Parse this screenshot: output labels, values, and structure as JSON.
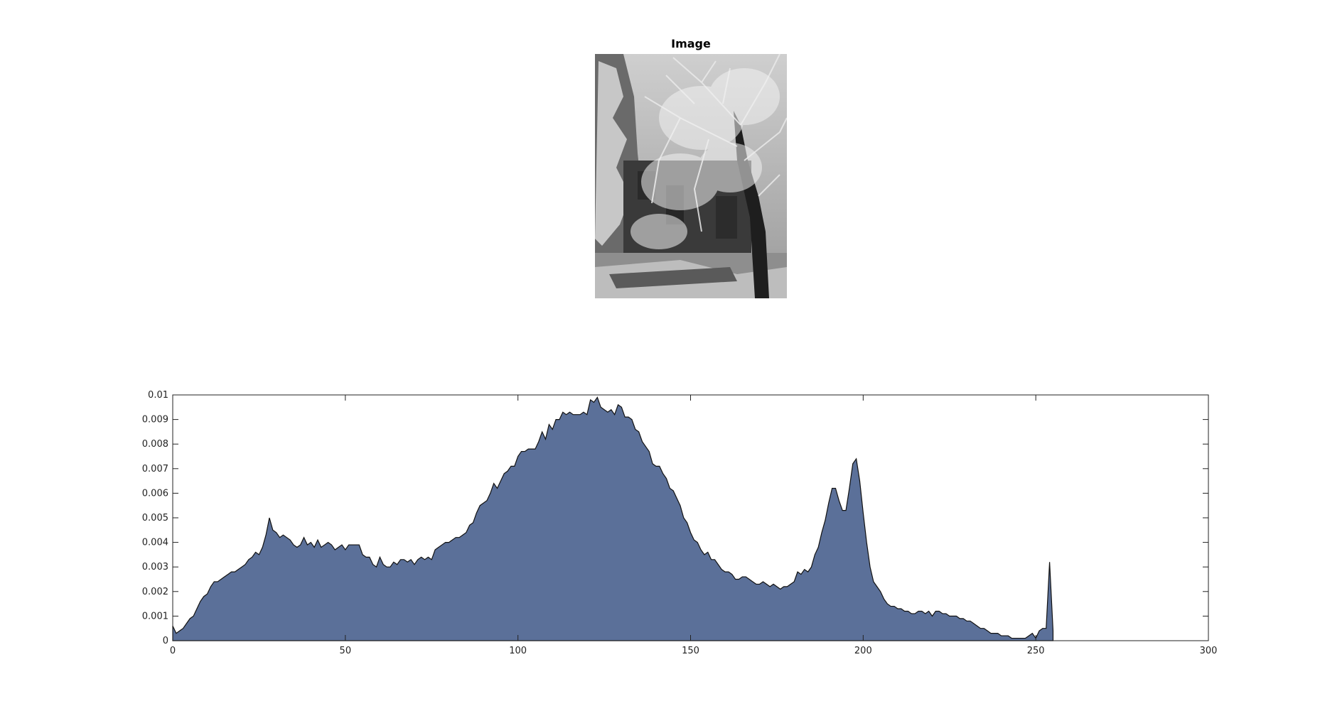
{
  "figure": {
    "image_title": "Image",
    "image_description": "Grayscale photo of snow-covered trees in front of a brick house"
  },
  "chart_data": {
    "type": "area",
    "title": "",
    "xlabel": "",
    "ylabel": "",
    "xlim": [
      0,
      300
    ],
    "ylim": [
      0,
      0.01
    ],
    "xticks": [
      0,
      50,
      100,
      150,
      200,
      250,
      300
    ],
    "yticks": [
      0,
      0.001,
      0.002,
      0.003,
      0.004,
      0.005,
      0.006,
      0.007,
      0.008,
      0.009,
      0.01
    ],
    "xtick_labels": [
      "0",
      "50",
      "100",
      "150",
      "200",
      "250",
      "300"
    ],
    "ytick_labels": [
      "0",
      "0.001",
      "0.002",
      "0.003",
      "0.004",
      "0.005",
      "0.006",
      "0.007",
      "0.008",
      "0.009",
      "0.01"
    ],
    "grid": false,
    "fill_color": "#5b7099",
    "edge_color": "#111111",
    "series": [
      {
        "x": [
          0,
          1,
          2,
          3,
          4,
          5,
          6,
          7,
          8,
          9,
          10,
          11,
          12,
          13,
          14,
          15,
          16,
          17,
          18,
          19,
          20,
          21,
          22,
          23,
          24,
          25,
          26,
          27,
          28,
          29,
          30,
          31,
          32,
          33,
          34,
          35,
          36,
          37,
          38,
          39,
          40,
          41,
          42,
          43,
          44,
          45,
          46,
          47,
          48,
          49,
          50,
          51,
          52,
          53,
          54,
          55,
          56,
          57,
          58,
          59,
          60,
          61,
          62,
          63,
          64,
          65,
          66,
          67,
          68,
          69,
          70,
          71,
          72,
          73,
          74,
          75,
          76,
          77,
          78,
          79,
          80,
          81,
          82,
          83,
          84,
          85,
          86,
          87,
          88,
          89,
          90,
          91,
          92,
          93,
          94,
          95,
          96,
          97,
          98,
          99,
          100,
          101,
          102,
          103,
          104,
          105,
          106,
          107,
          108,
          109,
          110,
          111,
          112,
          113,
          114,
          115,
          116,
          117,
          118,
          119,
          120,
          121,
          122,
          123,
          124,
          125,
          126,
          127,
          128,
          129,
          130,
          131,
          132,
          133,
          134,
          135,
          136,
          137,
          138,
          139,
          140,
          141,
          142,
          143,
          144,
          145,
          146,
          147,
          148,
          149,
          150,
          151,
          152,
          153,
          154,
          155,
          156,
          157,
          158,
          159,
          160,
          161,
          162,
          163,
          164,
          165,
          166,
          167,
          168,
          169,
          170,
          171,
          172,
          173,
          174,
          175,
          176,
          177,
          178,
          179,
          180,
          181,
          182,
          183,
          184,
          185,
          186,
          187,
          188,
          189,
          190,
          191,
          192,
          193,
          194,
          195,
          196,
          197,
          198,
          199,
          200,
          201,
          202,
          203,
          204,
          205,
          206,
          207,
          208,
          209,
          210,
          211,
          212,
          213,
          214,
          215,
          216,
          217,
          218,
          219,
          220,
          221,
          222,
          223,
          224,
          225,
          226,
          227,
          228,
          229,
          230,
          231,
          232,
          233,
          234,
          235,
          236,
          237,
          238,
          239,
          240,
          241,
          242,
          243,
          244,
          245,
          246,
          247,
          248,
          249,
          250,
          251,
          252,
          253,
          254,
          255
        ],
        "y": [
          0.0006,
          0.0003,
          0.0004,
          0.0005,
          0.0007,
          0.0009,
          0.001,
          0.0013,
          0.0016,
          0.0018,
          0.0019,
          0.0022,
          0.0024,
          0.0024,
          0.0025,
          0.0026,
          0.0027,
          0.0028,
          0.0028,
          0.0029,
          0.003,
          0.0031,
          0.0033,
          0.0034,
          0.0036,
          0.0035,
          0.0038,
          0.0043,
          0.005,
          0.0045,
          0.0044,
          0.0042,
          0.0043,
          0.0042,
          0.0041,
          0.0039,
          0.0038,
          0.0039,
          0.0042,
          0.0039,
          0.004,
          0.0038,
          0.0041,
          0.0038,
          0.0039,
          0.004,
          0.0039,
          0.0037,
          0.0038,
          0.0039,
          0.0037,
          0.0039,
          0.0039,
          0.0039,
          0.0039,
          0.0035,
          0.0034,
          0.0034,
          0.0031,
          0.003,
          0.0034,
          0.0031,
          0.003,
          0.003,
          0.0032,
          0.0031,
          0.0033,
          0.0033,
          0.0032,
          0.0033,
          0.0031,
          0.0033,
          0.0034,
          0.0033,
          0.0034,
          0.0033,
          0.0037,
          0.0038,
          0.0039,
          0.004,
          0.004,
          0.0041,
          0.0042,
          0.0042,
          0.0043,
          0.0044,
          0.0047,
          0.0048,
          0.0052,
          0.0055,
          0.0056,
          0.0057,
          0.006,
          0.0064,
          0.0062,
          0.0065,
          0.0068,
          0.0069,
          0.0071,
          0.0071,
          0.0075,
          0.0077,
          0.0077,
          0.0078,
          0.0078,
          0.0078,
          0.0081,
          0.0085,
          0.0082,
          0.0088,
          0.0086,
          0.009,
          0.009,
          0.0093,
          0.0092,
          0.0093,
          0.0092,
          0.0092,
          0.0092,
          0.0093,
          0.0092,
          0.0098,
          0.0097,
          0.0099,
          0.0095,
          0.0094,
          0.0093,
          0.0094,
          0.0092,
          0.0096,
          0.0095,
          0.0091,
          0.0091,
          0.009,
          0.0086,
          0.0085,
          0.0081,
          0.0079,
          0.0077,
          0.0072,
          0.0071,
          0.0071,
          0.0068,
          0.0066,
          0.0062,
          0.0061,
          0.0058,
          0.0055,
          0.005,
          0.0048,
          0.0044,
          0.0041,
          0.004,
          0.0037,
          0.0035,
          0.0036,
          0.0033,
          0.0033,
          0.0031,
          0.0029,
          0.0028,
          0.0028,
          0.0027,
          0.0025,
          0.0025,
          0.0026,
          0.0026,
          0.0025,
          0.0024,
          0.0023,
          0.0023,
          0.0024,
          0.0023,
          0.0022,
          0.0023,
          0.0022,
          0.0021,
          0.0022,
          0.0022,
          0.0023,
          0.0024,
          0.0028,
          0.0027,
          0.0029,
          0.0028,
          0.003,
          0.0035,
          0.0038,
          0.0044,
          0.0049,
          0.0056,
          0.0062,
          0.0062,
          0.0057,
          0.0053,
          0.0053,
          0.0062,
          0.0072,
          0.0074,
          0.0065,
          0.0052,
          0.004,
          0.003,
          0.0024,
          0.0022,
          0.002,
          0.0017,
          0.0015,
          0.0014,
          0.0014,
          0.0013,
          0.0013,
          0.0012,
          0.0012,
          0.0011,
          0.0011,
          0.0012,
          0.0012,
          0.0011,
          0.0012,
          0.001,
          0.0012,
          0.0012,
          0.0011,
          0.0011,
          0.001,
          0.001,
          0.001,
          0.0009,
          0.0009,
          0.0008,
          0.0008,
          0.0007,
          0.0006,
          0.0005,
          0.0005,
          0.0004,
          0.0003,
          0.0003,
          0.0003,
          0.0002,
          0.0002,
          0.0002,
          0.0001,
          0.0001,
          0.0001,
          0.0001,
          0.0001,
          0.0002,
          0.0003,
          0.0001,
          0.0004,
          0.0005,
          0.0005,
          0.0032,
          0.0004
        ]
      }
    ]
  }
}
